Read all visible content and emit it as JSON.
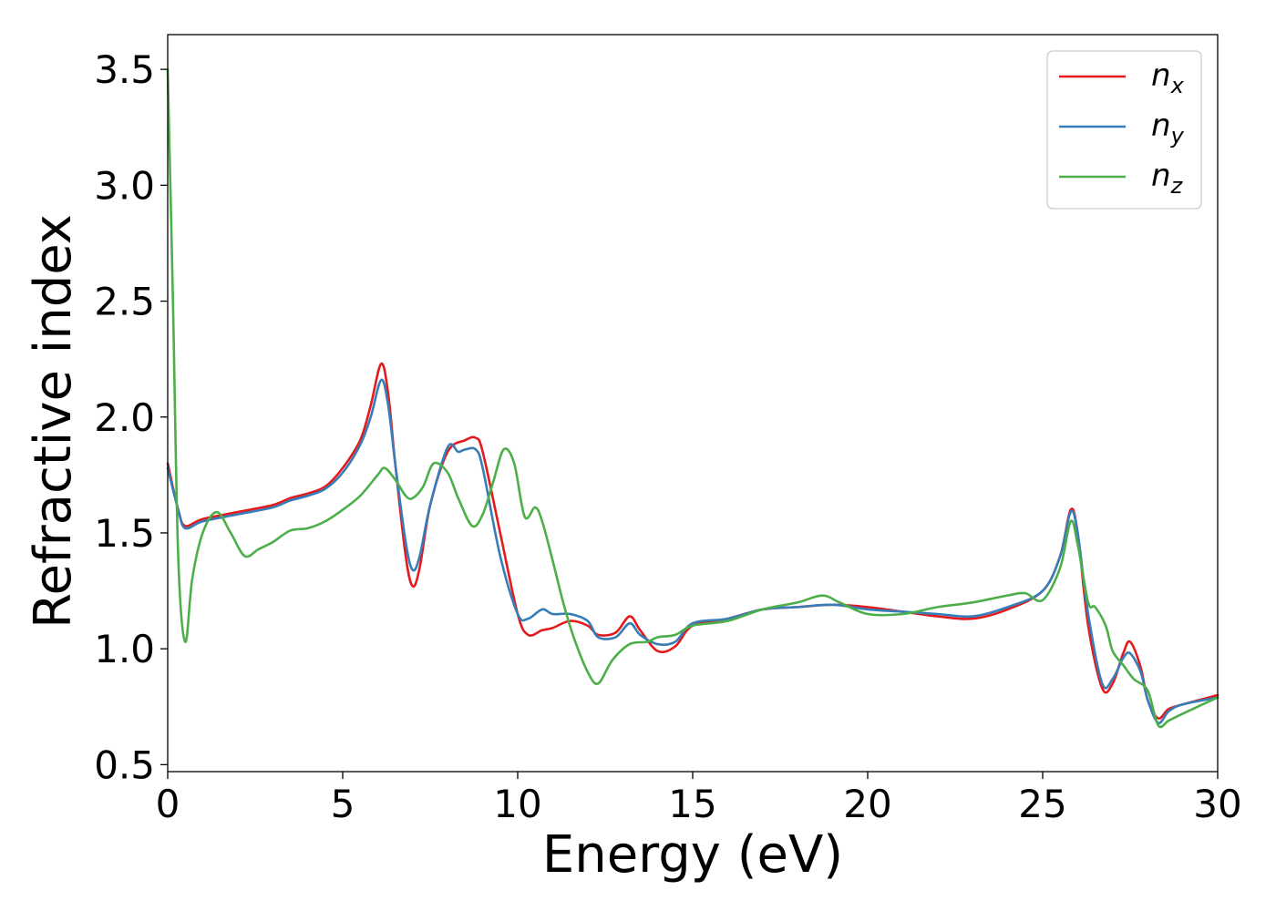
{
  "chart_data": {
    "type": "line",
    "xlabel": "Energy (eV)",
    "ylabel": "Refractive index",
    "xlim": [
      0,
      30
    ],
    "ylim": [
      0.47,
      3.65
    ],
    "xticks": [
      0,
      5,
      10,
      15,
      20,
      25,
      30
    ],
    "xtick_labels": [
      "0",
      "5",
      "10",
      "15",
      "20",
      "25",
      "30"
    ],
    "yticks": [
      0.5,
      1.0,
      1.5,
      2.0,
      2.5,
      3.0,
      3.5
    ],
    "ytick_labels": [
      "0.5",
      "1.0",
      "1.5",
      "2.0",
      "2.5",
      "3.0",
      "3.5"
    ],
    "grid": false,
    "legend_position": "top-right",
    "series": [
      {
        "name": "n_x",
        "base": "n",
        "sub": "x",
        "color": "#e41a1c",
        "x": [
          0,
          0.3,
          0.5,
          1,
          2,
          3,
          3.5,
          4,
          4.5,
          5,
          5.5,
          5.8,
          6.1,
          6.3,
          6.5,
          6.8,
          7.0,
          7.2,
          7.5,
          8.0,
          8.5,
          8.8,
          9.0,
          9.5,
          10.0,
          10.3,
          10.7,
          11.0,
          11.5,
          12.0,
          12.3,
          12.8,
          13.2,
          13.5,
          14.0,
          14.5,
          15.0,
          16.0,
          17.0,
          18.0,
          19.0,
          20.0,
          21.0,
          22.0,
          23.0,
          24.0,
          25.0,
          25.5,
          25.8,
          26.0,
          26.3,
          26.7,
          27.0,
          27.3,
          27.5,
          27.8,
          28.0,
          28.3,
          28.6,
          29.0,
          30.0
        ],
        "y": [
          1.8,
          1.6,
          1.53,
          1.56,
          1.59,
          1.62,
          1.65,
          1.67,
          1.7,
          1.78,
          1.9,
          2.05,
          2.23,
          2.1,
          1.8,
          1.4,
          1.27,
          1.35,
          1.62,
          1.85,
          1.9,
          1.91,
          1.85,
          1.5,
          1.15,
          1.06,
          1.08,
          1.09,
          1.12,
          1.1,
          1.06,
          1.07,
          1.14,
          1.08,
          0.99,
          1.01,
          1.1,
          1.13,
          1.17,
          1.18,
          1.19,
          1.18,
          1.16,
          1.14,
          1.13,
          1.17,
          1.25,
          1.4,
          1.6,
          1.5,
          1.1,
          0.83,
          0.85,
          0.98,
          1.03,
          0.92,
          0.78,
          0.7,
          0.74,
          0.76,
          0.8
        ]
      },
      {
        "name": "n_y",
        "base": "n",
        "sub": "y",
        "color": "#377eb8",
        "x": [
          0,
          0.3,
          0.5,
          1,
          2,
          3,
          3.5,
          4,
          4.5,
          5,
          5.5,
          5.8,
          6.1,
          6.3,
          6.5,
          6.8,
          7.0,
          7.2,
          7.5,
          8.0,
          8.3,
          8.5,
          8.8,
          9.0,
          9.5,
          10.0,
          10.3,
          10.7,
          11.0,
          11.5,
          12.0,
          12.3,
          12.8,
          13.2,
          13.5,
          14.0,
          14.5,
          15.0,
          16.0,
          17.0,
          18.0,
          19.0,
          20.0,
          21.0,
          22.0,
          23.0,
          24.0,
          25.0,
          25.5,
          25.8,
          26.0,
          26.3,
          26.7,
          27.0,
          27.3,
          27.5,
          27.8,
          28.0,
          28.3,
          28.6,
          29.0,
          30.0
        ],
        "y": [
          1.78,
          1.6,
          1.52,
          1.55,
          1.58,
          1.61,
          1.64,
          1.66,
          1.69,
          1.76,
          1.88,
          2.0,
          2.16,
          2.05,
          1.8,
          1.46,
          1.34,
          1.4,
          1.62,
          1.87,
          1.85,
          1.86,
          1.86,
          1.78,
          1.4,
          1.15,
          1.13,
          1.17,
          1.15,
          1.15,
          1.12,
          1.05,
          1.05,
          1.11,
          1.06,
          1.02,
          1.03,
          1.11,
          1.13,
          1.17,
          1.18,
          1.19,
          1.17,
          1.16,
          1.15,
          1.14,
          1.18,
          1.25,
          1.4,
          1.59,
          1.5,
          1.15,
          0.85,
          0.87,
          0.96,
          0.98,
          0.9,
          0.78,
          0.68,
          0.73,
          0.76,
          0.79
        ]
      },
      {
        "name": "n_z",
        "base": "n",
        "sub": "z",
        "color": "#4daf4a",
        "x": [
          0,
          0.15,
          0.3,
          0.5,
          0.7,
          1.0,
          1.4,
          1.8,
          2.2,
          2.6,
          3.0,
          3.5,
          4.0,
          4.5,
          5.0,
          5.5,
          6.0,
          6.2,
          6.5,
          6.8,
          7.0,
          7.3,
          7.6,
          8.0,
          8.3,
          8.7,
          9.0,
          9.3,
          9.6,
          9.9,
          10.2,
          10.5,
          10.7,
          11.0,
          11.3,
          11.6,
          12.0,
          12.3,
          12.7,
          13.2,
          13.7,
          14.0,
          14.5,
          15.0,
          16.0,
          17.0,
          18.0,
          18.7,
          19.2,
          20.0,
          21.0,
          22.0,
          23.0,
          24.0,
          24.5,
          25.0,
          25.5,
          25.8,
          26.0,
          26.3,
          26.5,
          26.8,
          27.0,
          27.3,
          27.6,
          28.0,
          28.3,
          28.6,
          29.0,
          30.0
        ],
        "y": [
          3.5,
          2.5,
          1.4,
          1.03,
          1.3,
          1.5,
          1.59,
          1.5,
          1.4,
          1.43,
          1.46,
          1.51,
          1.52,
          1.55,
          1.6,
          1.66,
          1.75,
          1.78,
          1.73,
          1.66,
          1.65,
          1.7,
          1.8,
          1.76,
          1.65,
          1.53,
          1.58,
          1.72,
          1.86,
          1.8,
          1.57,
          1.61,
          1.55,
          1.38,
          1.2,
          1.05,
          0.9,
          0.85,
          0.95,
          1.02,
          1.03,
          1.05,
          1.06,
          1.1,
          1.12,
          1.17,
          1.2,
          1.23,
          1.2,
          1.15,
          1.15,
          1.18,
          1.2,
          1.23,
          1.24,
          1.21,
          1.35,
          1.55,
          1.45,
          1.2,
          1.18,
          1.1,
          0.99,
          0.93,
          0.87,
          0.82,
          0.67,
          0.69,
          0.72,
          0.79
        ]
      }
    ]
  }
}
